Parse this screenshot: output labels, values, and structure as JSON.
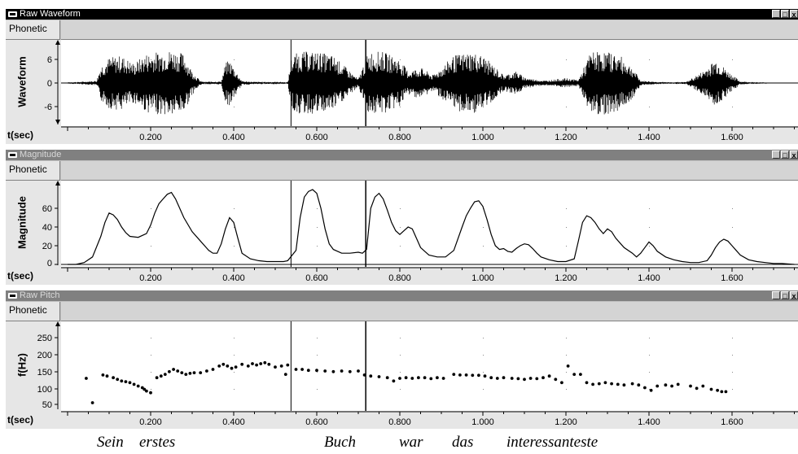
{
  "panes": [
    {
      "title": "Raw Waveform",
      "phonetic_label": "Phonetic",
      "ylabel": "Waveform",
      "xlabel": "t(sec)",
      "yticks": [
        "6",
        "0",
        "-6"
      ],
      "window_buttons": [
        "_",
        "□",
        "x"
      ]
    },
    {
      "title": "Magnitude",
      "phonetic_label": "Phonetic",
      "ylabel": "Magnitude",
      "xlabel": "t(sec)",
      "yticks": [
        "60",
        "40",
        "20",
        "0"
      ],
      "window_buttons": [
        "_",
        "□",
        "x"
      ]
    },
    {
      "title": "Raw Pitch",
      "phonetic_label": "Phonetic",
      "ylabel": "f(Hz)",
      "xlabel": "t(sec)",
      "yticks": [
        "250",
        "200",
        "150",
        "100",
        "50"
      ],
      "window_buttons": [
        "_",
        "□",
        "x"
      ]
    }
  ],
  "xticks": [
    "0.200",
    "0.400",
    "0.600",
    "0.800",
    "1.000",
    "1.200",
    "1.400",
    "1.600"
  ],
  "words": [
    "Sein",
    "erstes",
    "Buch",
    "war",
    "das",
    "interessanteste"
  ],
  "chart_data": [
    {
      "type": "line",
      "x_range": [
        0.0,
        1.75
      ],
      "y_range": [
        -9,
        9
      ],
      "markers_sec": [
        0.538,
        0.718
      ],
      "envelope": {
        "t": [
          0.0,
          0.03,
          0.07,
          0.08,
          0.1,
          0.13,
          0.16,
          0.19,
          0.22,
          0.25,
          0.28,
          0.3,
          0.32,
          0.33,
          0.35,
          0.37,
          0.38,
          0.39,
          0.4,
          0.42,
          0.45,
          0.48,
          0.51,
          0.53,
          0.54,
          0.56,
          0.6,
          0.64,
          0.66,
          0.68,
          0.7,
          0.72,
          0.73,
          0.76,
          0.8,
          0.82,
          0.85,
          0.88,
          0.9,
          0.93,
          0.97,
          1.0,
          1.02,
          1.05,
          1.08,
          1.1,
          1.12,
          1.15,
          1.18,
          1.2,
          1.23,
          1.26,
          1.3,
          1.33,
          1.36,
          1.38,
          1.42,
          1.45,
          1.49,
          1.53,
          1.56,
          1.59,
          1.62,
          1.66,
          1.7,
          1.75
        ],
        "amp": [
          0.2,
          0.3,
          0.6,
          4.5,
          6.5,
          7,
          5,
          7.5,
          8,
          8.5,
          7.5,
          3,
          0.5,
          0.3,
          0.4,
          0.4,
          5,
          6,
          4,
          0.5,
          0.3,
          0.3,
          0.3,
          0.2,
          7,
          8,
          8,
          7,
          5,
          3,
          1,
          7,
          8,
          8,
          6,
          3,
          4,
          2,
          4,
          7,
          8,
          7,
          5,
          2,
          3,
          1.5,
          1,
          0.6,
          1,
          1.2,
          0.8,
          8,
          8,
          7,
          4,
          0.6,
          0.3,
          0.2,
          0.3,
          3,
          6,
          3,
          0.4,
          0.2,
          0.1,
          0.1
        ]
      }
    },
    {
      "type": "line",
      "x_range": [
        0.0,
        1.75
      ],
      "y_range": [
        0,
        80
      ],
      "markers_sec": [
        0.538,
        0.718
      ],
      "x": [
        0.0,
        0.02,
        0.04,
        0.06,
        0.08,
        0.09,
        0.1,
        0.11,
        0.12,
        0.13,
        0.14,
        0.15,
        0.17,
        0.19,
        0.2,
        0.21,
        0.22,
        0.23,
        0.24,
        0.25,
        0.26,
        0.28,
        0.3,
        0.32,
        0.34,
        0.35,
        0.36,
        0.37,
        0.38,
        0.39,
        0.4,
        0.41,
        0.42,
        0.44,
        0.46,
        0.48,
        0.5,
        0.52,
        0.53,
        0.55,
        0.56,
        0.57,
        0.58,
        0.59,
        0.6,
        0.61,
        0.62,
        0.63,
        0.64,
        0.66,
        0.68,
        0.7,
        0.71,
        0.72,
        0.73,
        0.74,
        0.75,
        0.76,
        0.77,
        0.78,
        0.79,
        0.8,
        0.81,
        0.82,
        0.83,
        0.84,
        0.85,
        0.87,
        0.89,
        0.91,
        0.93,
        0.95,
        0.96,
        0.97,
        0.98,
        0.99,
        1.0,
        1.01,
        1.02,
        1.03,
        1.04,
        1.05,
        1.06,
        1.07,
        1.08,
        1.09,
        1.1,
        1.11,
        1.12,
        1.13,
        1.14,
        1.16,
        1.18,
        1.2,
        1.22,
        1.23,
        1.24,
        1.25,
        1.26,
        1.27,
        1.28,
        1.29,
        1.3,
        1.31,
        1.32,
        1.34,
        1.36,
        1.37,
        1.38,
        1.39,
        1.4,
        1.41,
        1.42,
        1.44,
        1.46,
        1.48,
        1.5,
        1.52,
        1.54,
        1.55,
        1.56,
        1.57,
        1.58,
        1.59,
        1.6,
        1.61,
        1.62,
        1.64,
        1.66,
        1.68,
        1.7,
        1.72,
        1.75
      ],
      "y": [
        0,
        0,
        2,
        8,
        30,
        45,
        55,
        53,
        48,
        40,
        34,
        30,
        29,
        33,
        42,
        55,
        65,
        70,
        75,
        77,
        70,
        50,
        35,
        25,
        15,
        12,
        12,
        22,
        38,
        50,
        45,
        28,
        12,
        6,
        4,
        3,
        3,
        3,
        4,
        15,
        50,
        72,
        78,
        80,
        76,
        60,
        38,
        22,
        16,
        12,
        12,
        13,
        12,
        16,
        60,
        72,
        76,
        70,
        58,
        45,
        36,
        32,
        36,
        40,
        38,
        28,
        18,
        10,
        8,
        8,
        15,
        40,
        52,
        60,
        67,
        68,
        62,
        48,
        32,
        20,
        16,
        17,
        14,
        13,
        17,
        20,
        22,
        21,
        17,
        12,
        8,
        5,
        3,
        3,
        6,
        25,
        45,
        52,
        50,
        45,
        38,
        33,
        38,
        35,
        28,
        18,
        12,
        8,
        12,
        18,
        24,
        20,
        14,
        8,
        5,
        3,
        2,
        2,
        4,
        10,
        18,
        24,
        27,
        25,
        20,
        15,
        10,
        5,
        3,
        2,
        1,
        1,
        0
      ]
    },
    {
      "type": "scatter",
      "x_range": [
        0.0,
        1.75
      ],
      "y_range": [
        40,
        290
      ],
      "markers_sec": [
        0.538,
        0.718
      ],
      "x": [
        0.045,
        0.06,
        0.085,
        0.095,
        0.11,
        0.12,
        0.13,
        0.14,
        0.15,
        0.16,
        0.17,
        0.18,
        0.185,
        0.19,
        0.2,
        0.215,
        0.225,
        0.235,
        0.245,
        0.255,
        0.265,
        0.275,
        0.285,
        0.295,
        0.305,
        0.32,
        0.335,
        0.35,
        0.365,
        0.375,
        0.385,
        0.395,
        0.405,
        0.42,
        0.435,
        0.445,
        0.455,
        0.465,
        0.475,
        0.485,
        0.5,
        0.515,
        0.525,
        0.53,
        0.55,
        0.565,
        0.58,
        0.6,
        0.62,
        0.64,
        0.66,
        0.68,
        0.7,
        0.715,
        0.73,
        0.75,
        0.77,
        0.785,
        0.8,
        0.815,
        0.83,
        0.845,
        0.86,
        0.875,
        0.89,
        0.905,
        0.93,
        0.945,
        0.96,
        0.975,
        0.99,
        1.005,
        1.02,
        1.035,
        1.05,
        1.07,
        1.085,
        1.1,
        1.115,
        1.13,
        1.145,
        1.16,
        1.175,
        1.19,
        1.205,
        1.22,
        1.235,
        1.25,
        1.265,
        1.28,
        1.295,
        1.31,
        1.325,
        1.34,
        1.36,
        1.375,
        1.39,
        1.405,
        1.42,
        1.44,
        1.455,
        1.47,
        1.5,
        1.515,
        1.53,
        1.55,
        1.565,
        1.575,
        1.585
      ],
      "y": [
        128,
        55,
        138,
        135,
        130,
        125,
        120,
        118,
        115,
        110,
        105,
        100,
        95,
        90,
        85,
        130,
        135,
        140,
        148,
        155,
        150,
        145,
        140,
        143,
        145,
        145,
        150,
        155,
        165,
        170,
        165,
        158,
        162,
        170,
        165,
        172,
        168,
        172,
        175,
        170,
        162,
        165,
        140,
        168,
        155,
        155,
        152,
        152,
        150,
        148,
        150,
        148,
        150,
        138,
        135,
        133,
        130,
        120,
        128,
        130,
        128,
        130,
        130,
        127,
        130,
        128,
        140,
        138,
        138,
        137,
        137,
        135,
        130,
        128,
        130,
        128,
        127,
        125,
        128,
        127,
        130,
        135,
        125,
        115,
        165,
        140,
        140,
        115,
        110,
        112,
        115,
        112,
        110,
        108,
        112,
        108,
        100,
        92,
        105,
        108,
        105,
        110,
        105,
        98,
        105,
        95,
        92,
        88,
        88
      ]
    }
  ]
}
